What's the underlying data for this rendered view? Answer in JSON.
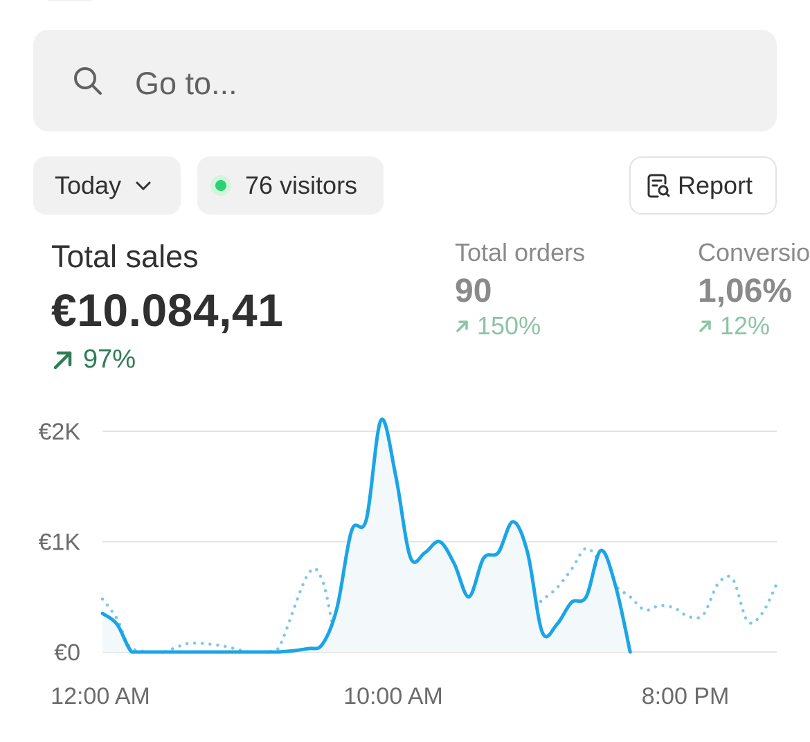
{
  "search": {
    "placeholder": "Go to..."
  },
  "filters": {
    "date_range": "Today",
    "visitors": "76 visitors",
    "report_label": "Report"
  },
  "metrics": {
    "total_sales": {
      "title": "Total sales",
      "value": "€10.084,41",
      "change": "97%"
    },
    "total_orders": {
      "title": "Total orders",
      "value": "90",
      "change": "150%"
    },
    "conversion": {
      "title": "Conversio",
      "value": "1,06%",
      "change": "12%"
    }
  },
  "colors": {
    "accent_line": "#1aa5e6",
    "comparison_line": "#7cc8e8",
    "positive": "#2e7d57",
    "live": "#29d36f"
  },
  "chart_data": {
    "type": "line",
    "ylabel_ticks": [
      "€0",
      "€1K",
      "€2K"
    ],
    "ylim": [
      0,
      2000
    ],
    "x_ticks": [
      "12:00 AM",
      "10:00 AM",
      "8:00 PM"
    ],
    "x_range_hours": [
      0,
      23
    ],
    "grid": true,
    "series": [
      {
        "style": "solid",
        "x": [
          0,
          0.5,
          1,
          1.5,
          2,
          3,
          4,
          5,
          6,
          7,
          7.5,
          8,
          8.5,
          9,
          9.5,
          10,
          10.5,
          11,
          11.5,
          12,
          12.5,
          13,
          13.5,
          14,
          14.5,
          15,
          15.5,
          16,
          16.5,
          17,
          17.5,
          18
        ],
        "values": [
          350,
          250,
          0,
          0,
          0,
          0,
          0,
          0,
          0,
          30,
          70,
          400,
          1100,
          1200,
          2100,
          1600,
          860,
          900,
          1000,
          800,
          500,
          850,
          900,
          1180,
          900,
          180,
          250,
          450,
          500,
          920,
          600,
          0
        ]
      },
      {
        "style": "dotted",
        "x": [
          0,
          0.5,
          1,
          2,
          2.5,
          3,
          4,
          5,
          5.5,
          6,
          7,
          7.5,
          8,
          8.5,
          9,
          9.5,
          10,
          10.5,
          11,
          11.5,
          12,
          12.5,
          13,
          13.5,
          14,
          14.5,
          15,
          15.5,
          16,
          16.5,
          17,
          17.5,
          18,
          18.5,
          19,
          19.5,
          20,
          20.5,
          21,
          21.5,
          22,
          22.5,
          23
        ],
        "values": [
          480,
          300,
          30,
          0,
          40,
          80,
          60,
          0,
          0,
          30,
          700,
          650,
          100,
          60,
          50,
          50,
          200,
          260,
          280,
          300,
          260,
          180,
          20,
          150,
          300,
          350,
          470,
          580,
          750,
          940,
          800,
          600,
          500,
          380,
          420,
          400,
          320,
          340,
          620,
          660,
          280,
          350,
          620
        ]
      }
    ]
  }
}
